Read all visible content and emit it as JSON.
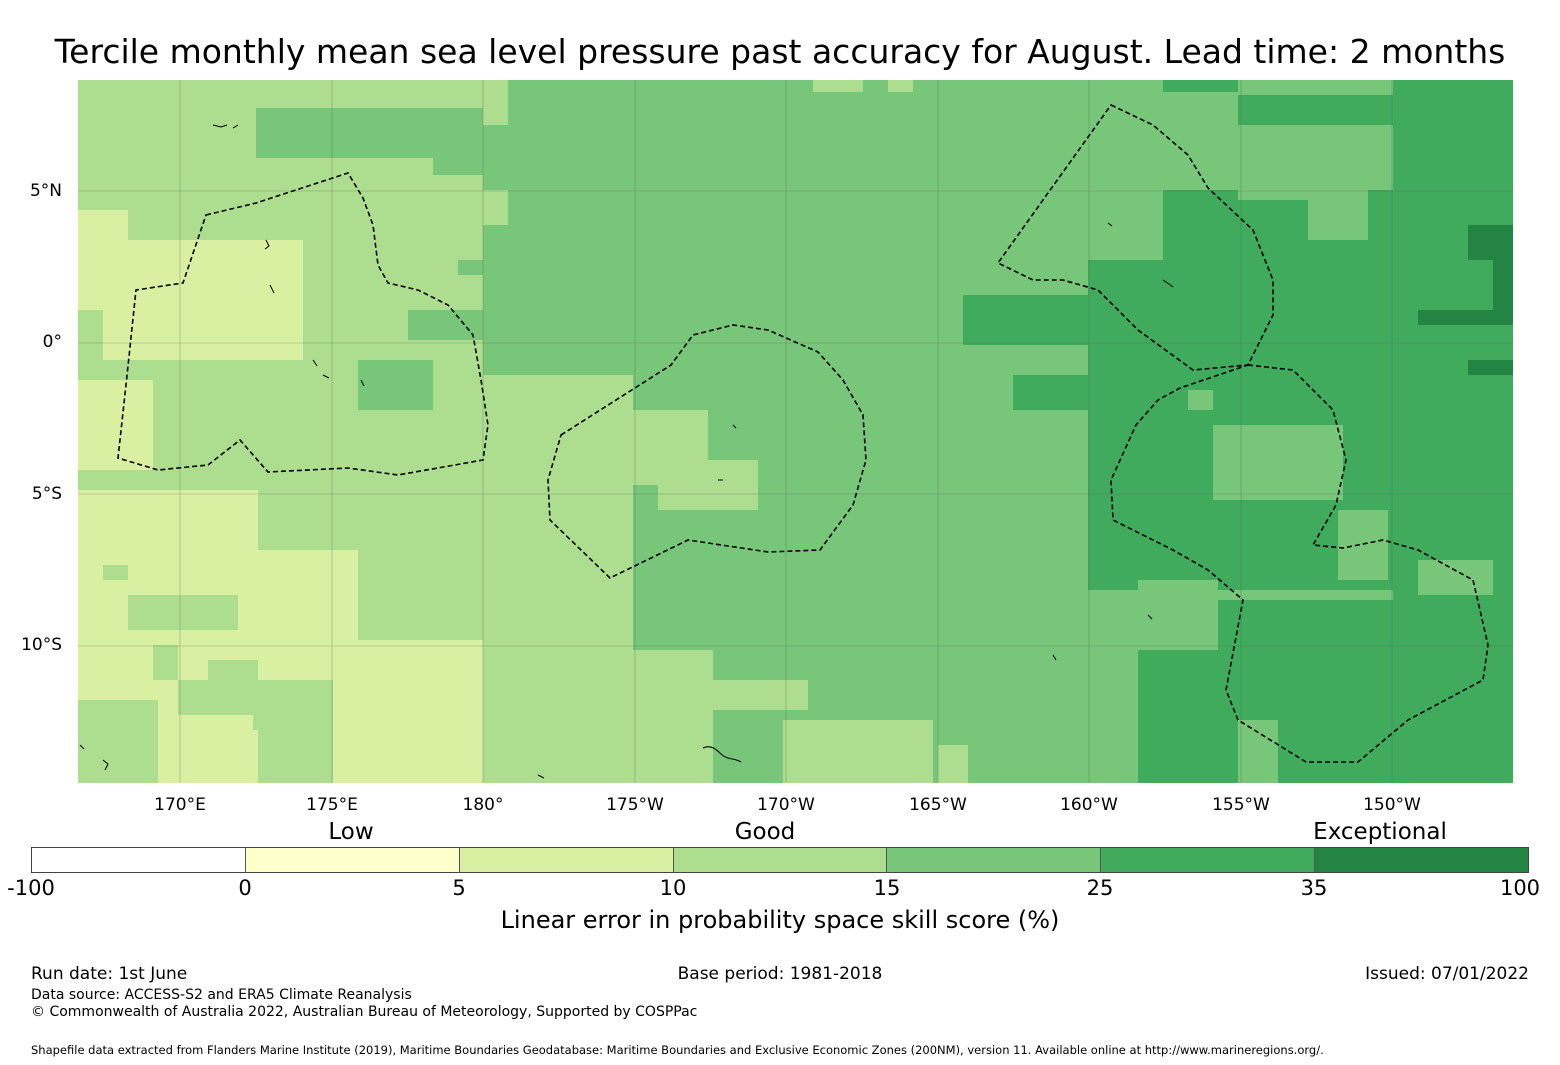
{
  "title": "Tercile monthly mean sea level pressure past accuracy for August. Lead time: 2 months",
  "map": {
    "y_labels": [
      "5°N",
      "0°",
      "5°S",
      "10°S"
    ],
    "x_labels": [
      "170°E",
      "175°E",
      "180°",
      "175°W",
      "170°W",
      "165°W",
      "160°W",
      "155°W",
      "150°W"
    ]
  },
  "legend": {
    "categories": [
      "Low",
      "Good",
      "Exceptional"
    ],
    "bins": [
      {
        "range": [
          -100,
          0
        ],
        "color": "#ffffff"
      },
      {
        "range": [
          0,
          5
        ],
        "color": "#ffffcc"
      },
      {
        "range": [
          5,
          10
        ],
        "color": "#d9f0a3"
      },
      {
        "range": [
          10,
          15
        ],
        "color": "#addd8e"
      },
      {
        "range": [
          15,
          25
        ],
        "color": "#78c679"
      },
      {
        "range": [
          25,
          35
        ],
        "color": "#41ab5d"
      },
      {
        "range": [
          35,
          100
        ],
        "color": "#238443"
      }
    ],
    "ticks": [
      "-100",
      "0",
      "5",
      "10",
      "15",
      "25",
      "35",
      "100"
    ],
    "label": "Linear error in probability space skill score (%)"
  },
  "footer": {
    "run_date": "Run date: 1st June",
    "base_period": "Base period: 1981-2018",
    "issued": "Issued: 07/01/2022",
    "data_source": "Data source: ACCESS-S2 and ERA5 Climate Reanalysis",
    "copyright": "© Commonwealth of Australia 2022, Australian Bureau of Meteorology, Supported by COSPPac",
    "shapefile": "Shapefile data extracted from Flanders Marine Institute (2019), Maritime Boundaries Geodatabase: Maritime Boundaries and Exclusive Economic Zones (200NM), version 11. Available online at http://www.marineregions.org/."
  }
}
